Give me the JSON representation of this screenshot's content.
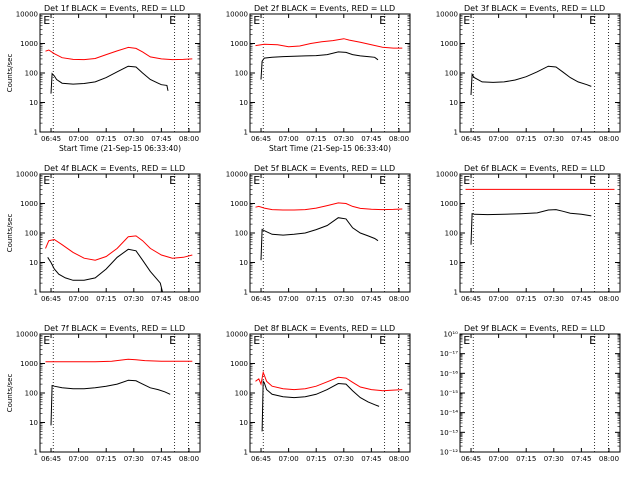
{
  "chart_data": [
    {
      "type": "line",
      "panel": 1,
      "title": "Det 1f BLACK = Events, RED = LLD",
      "xlabel": "Start Time (21-Sep-15 06:33:40)",
      "ylabel": "Counts/sec",
      "yscale": "log",
      "ylim": [
        1,
        10000
      ],
      "xlim": [
        6.65,
        8.1
      ],
      "ytick_labels": [
        "1",
        "10",
        "100",
        "1000",
        "10000"
      ],
      "xtick_labels": [
        "06:45",
        "07:00",
        "07:15",
        "07:30",
        "07:45",
        "08:00"
      ],
      "markers": [
        {
          "label": "E",
          "x": 6.68
        },
        {
          "label": "E",
          "x": 7.82
        }
      ],
      "dotted_lines_x": [
        6.77,
        7.87,
        7.995
      ],
      "series": [
        {
          "color": "#ff0000",
          "x": [
            6.7,
            6.73,
            6.78,
            6.85,
            6.95,
            7.05,
            7.15,
            7.25,
            7.35,
            7.45,
            7.52,
            7.58,
            7.65,
            7.75,
            7.85,
            7.95,
            8.03
          ],
          "y": [
            550,
            600,
            450,
            330,
            290,
            285,
            310,
            420,
            560,
            740,
            680,
            520,
            350,
            300,
            285,
            290,
            300
          ]
        },
        {
          "color": "#000000",
          "x": [
            6.75,
            6.76,
            6.78,
            6.8,
            6.85,
            6.95,
            7.05,
            7.15,
            7.25,
            7.35,
            7.45,
            7.52,
            7.58,
            7.65,
            7.72,
            7.75,
            7.8,
            7.81
          ],
          "y": [
            20,
            95,
            80,
            60,
            45,
            42,
            44,
            50,
            70,
            110,
            170,
            160,
            100,
            60,
            45,
            40,
            38,
            25
          ]
        }
      ]
    },
    {
      "type": "line",
      "panel": 2,
      "title": "Det 2f BLACK = Events, RED = LLD",
      "xlabel": "Start Time (21-Sep-15 06:33:40)",
      "ylabel": "",
      "yscale": "log",
      "ylim": [
        1,
        10000
      ],
      "xlim": [
        6.65,
        8.1
      ],
      "ytick_labels": [
        "1",
        "10",
        "100",
        "1000",
        "10000"
      ],
      "xtick_labels": [
        "06:45",
        "07:00",
        "07:15",
        "07:30",
        "07:45",
        "08:00"
      ],
      "markers": [
        {
          "label": "E",
          "x": 6.68
        },
        {
          "label": "E",
          "x": 7.82
        }
      ],
      "dotted_lines_x": [
        6.77,
        7.87,
        7.995
      ],
      "series": [
        {
          "color": "#ff0000",
          "x": [
            6.7,
            6.78,
            6.9,
            7.0,
            7.1,
            7.2,
            7.3,
            7.4,
            7.5,
            7.55,
            7.65,
            7.75,
            7.85,
            7.95,
            8.03
          ],
          "y": [
            850,
            950,
            900,
            780,
            820,
            1000,
            1150,
            1250,
            1450,
            1300,
            1100,
            900,
            750,
            700,
            700
          ]
        },
        {
          "color": "#000000",
          "x": [
            6.75,
            6.76,
            6.78,
            6.85,
            6.95,
            7.05,
            7.15,
            7.25,
            7.35,
            7.45,
            7.52,
            7.58,
            7.65,
            7.72,
            7.78,
            7.81
          ],
          "y": [
            60,
            250,
            320,
            340,
            360,
            370,
            380,
            390,
            420,
            520,
            500,
            420,
            380,
            360,
            340,
            280
          ]
        }
      ]
    },
    {
      "type": "line",
      "panel": 3,
      "title": "Det 3f BLACK = Events, RED = LLD",
      "xlabel": "",
      "ylabel": "",
      "yscale": "log",
      "ylim": [
        1,
        10000
      ],
      "xlim": [
        6.65,
        8.1
      ],
      "ytick_labels": [
        "1",
        "10",
        "100",
        "1000",
        "10000"
      ],
      "xtick_labels": [
        "06:45",
        "07:00",
        "07:15",
        "07:30",
        "07:45",
        "08:00"
      ],
      "markers": [
        {
          "label": "E",
          "x": 6.68
        },
        {
          "label": "E",
          "x": 7.82
        }
      ],
      "dotted_lines_x": [
        6.77,
        7.87,
        7.995
      ],
      "series": [
        {
          "color": "#000000",
          "x": [
            6.75,
            6.76,
            6.78,
            6.85,
            6.95,
            7.05,
            7.15,
            7.25,
            7.35,
            7.45,
            7.52,
            7.58,
            7.65,
            7.72,
            7.8,
            7.84
          ],
          "y": [
            18,
            90,
            70,
            50,
            48,
            50,
            58,
            75,
            110,
            170,
            160,
            110,
            70,
            50,
            40,
            35
          ]
        }
      ]
    },
    {
      "type": "line",
      "panel": 4,
      "title": "Det 4f BLACK = Events, RED = LLD",
      "xlabel": "",
      "ylabel": "Counts/sec",
      "yscale": "log",
      "ylim": [
        1,
        10000
      ],
      "xlim": [
        6.65,
        8.1
      ],
      "ytick_labels": [
        "1",
        "10",
        "100",
        "1000",
        "10000"
      ],
      "xtick_labels": [
        "06:45",
        "07:00",
        "07:15",
        "07:30",
        "07:45",
        "08:00"
      ],
      "markers": [
        {
          "label": "E",
          "x": 6.68
        },
        {
          "label": "E",
          "x": 7.82
        }
      ],
      "dotted_lines_x": [
        6.77,
        7.87,
        7.995
      ],
      "series": [
        {
          "color": "#ff0000",
          "x": [
            6.7,
            6.73,
            6.78,
            6.85,
            6.95,
            7.05,
            7.15,
            7.25,
            7.35,
            7.45,
            7.52,
            7.58,
            7.65,
            7.75,
            7.85,
            7.95,
            8.03
          ],
          "y": [
            30,
            55,
            60,
            40,
            22,
            14,
            12,
            16,
            30,
            75,
            80,
            55,
            30,
            18,
            14,
            15,
            18
          ]
        },
        {
          "color": "#000000",
          "x": [
            6.72,
            6.75,
            6.78,
            6.82,
            6.88,
            6.95,
            7.05,
            7.15,
            7.25,
            7.35,
            7.45,
            7.52,
            7.58,
            7.65,
            7.7,
            7.74,
            7.76
          ],
          "y": [
            15,
            10,
            6,
            4,
            3,
            2.5,
            2.5,
            3,
            6,
            15,
            28,
            25,
            12,
            5,
            3,
            2,
            1
          ]
        }
      ]
    },
    {
      "type": "line",
      "panel": 5,
      "title": "Det 5f BLACK = Events, RED = LLD",
      "xlabel": "",
      "ylabel": "",
      "yscale": "log",
      "ylim": [
        1,
        10000
      ],
      "xlim": [
        6.65,
        8.1
      ],
      "ytick_labels": [
        "1",
        "10",
        "100",
        "1000",
        "10000"
      ],
      "xtick_labels": [
        "06:45",
        "07:00",
        "07:15",
        "07:30",
        "07:45",
        "08:00"
      ],
      "markers": [
        {
          "label": "E",
          "x": 6.68
        },
        {
          "label": "E",
          "x": 7.82
        }
      ],
      "dotted_lines_x": [
        6.77,
        7.87,
        7.995
      ],
      "series": [
        {
          "color": "#ff0000",
          "x": [
            6.7,
            6.73,
            6.78,
            6.85,
            6.95,
            7.05,
            7.15,
            7.25,
            7.35,
            7.45,
            7.52,
            7.58,
            7.65,
            7.75,
            7.85,
            7.95,
            8.03
          ],
          "y": [
            750,
            800,
            700,
            620,
            600,
            600,
            620,
            700,
            850,
            1050,
            1000,
            800,
            680,
            640,
            620,
            630,
            650
          ]
        },
        {
          "color": "#000000",
          "x": [
            6.75,
            6.76,
            6.78,
            6.85,
            6.95,
            7.05,
            7.15,
            7.25,
            7.35,
            7.45,
            7.52,
            7.58,
            7.65,
            7.72,
            7.78,
            7.81
          ],
          "y": [
            12,
            130,
            120,
            90,
            85,
            90,
            100,
            130,
            180,
            330,
            300,
            150,
            100,
            80,
            65,
            55
          ]
        }
      ]
    },
    {
      "type": "line",
      "panel": 6,
      "title": "Det 6f BLACK = Events, RED = LLD",
      "xlabel": "",
      "ylabel": "",
      "yscale": "log",
      "ylim": [
        1,
        10000
      ],
      "xlim": [
        6.65,
        8.1
      ],
      "ytick_labels": [
        "1",
        "10",
        "100",
        "1000",
        "10000"
      ],
      "xtick_labels": [
        "06:45",
        "07:00",
        "07:15",
        "07:30",
        "07:45",
        "08:00"
      ],
      "markers": [
        {
          "label": "E",
          "x": 6.68
        },
        {
          "label": "E",
          "x": 7.82
        }
      ],
      "dotted_lines_x": [
        6.77,
        7.87,
        7.995
      ],
      "series": [
        {
          "color": "#ff0000",
          "x": [
            6.7,
            8.05
          ],
          "y": [
            3000,
            3000
          ]
        },
        {
          "color": "#000000",
          "x": [
            6.75,
            6.76,
            6.78,
            6.9,
            7.05,
            7.2,
            7.35,
            7.45,
            7.52,
            7.58,
            7.65,
            7.75,
            7.84
          ],
          "y": [
            40,
            450,
            430,
            420,
            430,
            450,
            480,
            600,
            620,
            550,
            470,
            430,
            380
          ]
        }
      ]
    },
    {
      "type": "line",
      "panel": 7,
      "title": "Det 7f BLACK = Events, RED = LLD",
      "xlabel": "",
      "ylabel": "Counts/sec",
      "yscale": "log",
      "ylim": [
        1,
        10000
      ],
      "xlim": [
        6.65,
        8.1
      ],
      "ytick_labels": [
        "1",
        "10",
        "100",
        "1000",
        "10000"
      ],
      "xtick_labels": [
        "06:45",
        "07:00",
        "07:15",
        "07:30",
        "07:45",
        "08:00"
      ],
      "markers": [
        {
          "label": "E",
          "x": 6.68
        },
        {
          "label": "E",
          "x": 7.82
        }
      ],
      "dotted_lines_x": [
        6.77,
        7.87,
        7.995
      ],
      "series": [
        {
          "color": "#ff0000",
          "x": [
            6.7,
            6.85,
            7.0,
            7.15,
            7.3,
            7.45,
            7.52,
            7.6,
            7.75,
            7.9,
            8.03
          ],
          "y": [
            1150,
            1150,
            1150,
            1150,
            1200,
            1400,
            1350,
            1250,
            1200,
            1200,
            1200
          ]
        },
        {
          "color": "#000000",
          "x": [
            6.75,
            6.76,
            6.78,
            6.85,
            6.95,
            7.05,
            7.15,
            7.25,
            7.35,
            7.45,
            7.52,
            7.58,
            7.65,
            7.72,
            7.78,
            7.83
          ],
          "y": [
            8,
            180,
            170,
            150,
            140,
            140,
            150,
            170,
            200,
            270,
            260,
            200,
            150,
            130,
            110,
            90
          ]
        }
      ]
    },
    {
      "type": "line",
      "panel": 8,
      "title": "Det 8f BLACK = Events, RED = LLD",
      "xlabel": "",
      "ylabel": "",
      "yscale": "log",
      "ylim": [
        1,
        10000
      ],
      "xlim": [
        6.65,
        8.1
      ],
      "ytick_labels": [
        "1",
        "10",
        "100",
        "1000",
        "10000"
      ],
      "xtick_labels": [
        "06:45",
        "07:00",
        "07:15",
        "07:30",
        "07:45",
        "08:00"
      ],
      "markers": [
        {
          "label": "E",
          "x": 6.68
        },
        {
          "label": "E",
          "x": 7.82
        }
      ],
      "dotted_lines_x": [
        6.77,
        7.87,
        7.995
      ],
      "series": [
        {
          "color": "#ff0000",
          "x": [
            6.7,
            6.73,
            6.75,
            6.77,
            6.78,
            6.8,
            6.85,
            6.95,
            7.05,
            7.15,
            7.25,
            7.35,
            7.45,
            7.52,
            7.58,
            7.65,
            7.75,
            7.85,
            7.95,
            8.03
          ],
          "y": [
            250,
            300,
            200,
            500,
            400,
            250,
            170,
            140,
            130,
            140,
            170,
            240,
            340,
            320,
            230,
            160,
            130,
            120,
            125,
            130
          ]
        },
        {
          "color": "#000000",
          "x": [
            6.76,
            6.77,
            6.78,
            6.8,
            6.85,
            6.95,
            7.05,
            7.15,
            7.25,
            7.35,
            7.45,
            7.52,
            7.58,
            7.65,
            7.72,
            7.78,
            7.82
          ],
          "y": [
            5,
            250,
            220,
            130,
            90,
            75,
            70,
            75,
            90,
            130,
            210,
            200,
            120,
            70,
            50,
            40,
            35
          ]
        }
      ]
    },
    {
      "type": "line",
      "panel": 9,
      "title": "Det 9f BLACK = Events, RED = LLD",
      "xlabel": "",
      "ylabel": "",
      "yscale": "log",
      "ylim": [
        1e-12,
        1e-10
      ],
      "xlim": [
        6.65,
        8.1
      ],
      "ytick_labels": [
        "10⁻¹²",
        "10⁻¹³",
        "10⁻¹⁴",
        "10⁻¹⁵",
        "10⁻¹⁶",
        "10⁻¹⁷",
        "10¹⁰"
      ],
      "xtick_labels": [
        "06:45",
        "07:00",
        "07:15",
        "07:30",
        "07:45",
        "08:00"
      ],
      "markers": [
        {
          "label": "E",
          "x": 6.68
        },
        {
          "label": "E",
          "x": 7.82
        }
      ],
      "dotted_lines_x": [
        6.77,
        7.87,
        7.995
      ],
      "series": []
    }
  ]
}
